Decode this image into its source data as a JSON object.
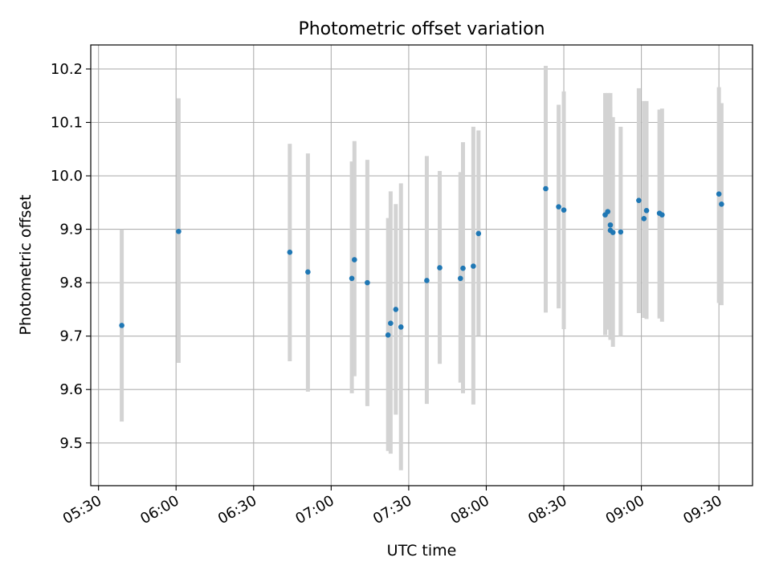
{
  "chart_data": {
    "type": "scatter",
    "title": "Photometric offset variation",
    "xlabel": "UTC time",
    "ylabel": "Photometric offset",
    "xlim": [
      "05:27",
      "09:43"
    ],
    "ylim": [
      9.42,
      10.245
    ],
    "grid": true,
    "x_ticks": [
      "05:30",
      "06:00",
      "06:30",
      "07:00",
      "07:30",
      "08:00",
      "08:30",
      "09:00",
      "09:30"
    ],
    "y_ticks": [
      "9.5",
      "9.6",
      "9.7",
      "9.8",
      "9.9",
      "10.0",
      "10.1",
      "10.2"
    ],
    "colors": {
      "point": "#1f77b4",
      "errorbar": "#d3d3d3",
      "grid": "#b0b0b0"
    },
    "series": [
      {
        "points": [
          {
            "t": "05:39",
            "y": 9.72,
            "lo": 9.54,
            "hi": 9.9
          },
          {
            "t": "06:01",
            "y": 9.896,
            "lo": 9.65,
            "hi": 10.145
          },
          {
            "t": "06:44",
            "y": 9.857,
            "lo": 9.653,
            "hi": 10.06
          },
          {
            "t": "06:51",
            "y": 9.82,
            "lo": 9.596,
            "hi": 10.042
          },
          {
            "t": "07:08",
            "y": 9.808,
            "lo": 9.593,
            "hi": 10.027
          },
          {
            "t": "07:09",
            "y": 9.843,
            "lo": 9.625,
            "hi": 10.065
          },
          {
            "t": "07:14",
            "y": 9.8,
            "lo": 9.569,
            "hi": 10.03
          },
          {
            "t": "07:22",
            "y": 9.702,
            "lo": 9.485,
            "hi": 9.921
          },
          {
            "t": "07:23",
            "y": 9.724,
            "lo": 9.48,
            "hi": 9.971
          },
          {
            "t": "07:25",
            "y": 9.75,
            "lo": 9.553,
            "hi": 9.947
          },
          {
            "t": "07:27",
            "y": 9.717,
            "lo": 9.449,
            "hi": 9.986
          },
          {
            "t": "07:37",
            "y": 9.804,
            "lo": 9.573,
            "hi": 10.037
          },
          {
            "t": "07:42",
            "y": 9.828,
            "lo": 9.648,
            "hi": 10.009
          },
          {
            "t": "07:50",
            "y": 9.808,
            "lo": 9.613,
            "hi": 10.007
          },
          {
            "t": "07:51",
            "y": 9.827,
            "lo": 9.593,
            "hi": 10.063
          },
          {
            "t": "07:55",
            "y": 9.831,
            "lo": 9.572,
            "hi": 10.092
          },
          {
            "t": "07:57",
            "y": 9.892,
            "lo": 9.701,
            "hi": 10.085
          },
          {
            "t": "08:23",
            "y": 9.976,
            "lo": 9.744,
            "hi": 10.206
          },
          {
            "t": "08:28",
            "y": 9.942,
            "lo": 9.752,
            "hi": 10.133
          },
          {
            "t": "08:30",
            "y": 9.936,
            "lo": 9.713,
            "hi": 10.158
          },
          {
            "t": "08:46",
            "y": 9.927,
            "lo": 9.702,
            "hi": 10.155
          },
          {
            "t": "08:47",
            "y": 9.933,
            "lo": 9.712,
            "hi": 10.155
          },
          {
            "t": "08:48",
            "y": 9.898,
            "lo": 9.693,
            "hi": 10.155
          },
          {
            "t": "08:48",
            "y": 9.908,
            "lo": 9.695,
            "hi": 10.13
          },
          {
            "t": "08:49",
            "y": 9.894,
            "lo": 9.68,
            "hi": 10.11
          },
          {
            "t": "08:52",
            "y": 9.895,
            "lo": 9.7,
            "hi": 10.092
          },
          {
            "t": "08:59",
            "y": 9.954,
            "lo": 9.743,
            "hi": 10.164
          },
          {
            "t": "09:01",
            "y": 9.92,
            "lo": 9.734,
            "hi": 10.14
          },
          {
            "t": "09:02",
            "y": 9.935,
            "lo": 9.732,
            "hi": 10.14
          },
          {
            "t": "09:07",
            "y": 9.93,
            "lo": 9.733,
            "hi": 10.124
          },
          {
            "t": "09:08",
            "y": 9.927,
            "lo": 9.727,
            "hi": 10.126
          },
          {
            "t": "09:30",
            "y": 9.966,
            "lo": 9.762,
            "hi": 10.166
          },
          {
            "t": "09:31",
            "y": 9.947,
            "lo": 9.758,
            "hi": 10.136
          }
        ]
      }
    ]
  }
}
